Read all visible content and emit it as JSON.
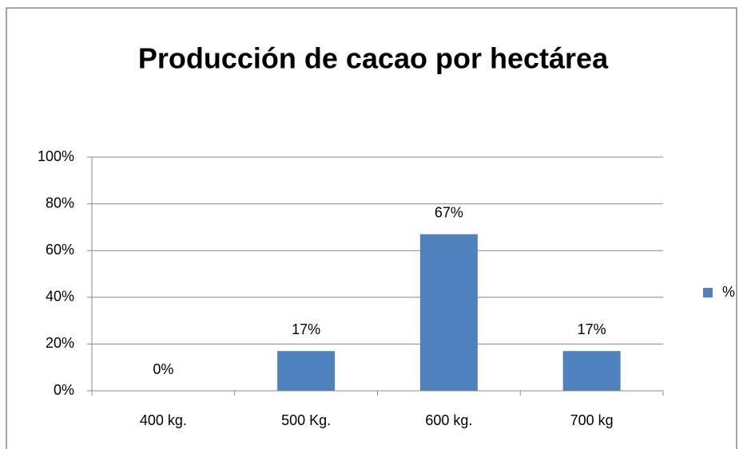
{
  "chart_data": {
    "type": "bar",
    "title": "Producción de cacao por hectárea",
    "categories": [
      "400 kg.",
      "500 Kg.",
      "600 kg.",
      "700 kg"
    ],
    "series": [
      {
        "name": "%",
        "color": "#4f81bd",
        "values": [
          0,
          17,
          67,
          17
        ],
        "value_labels": [
          "0%",
          "17%",
          "67%",
          "17%"
        ]
      }
    ],
    "ylim": [
      0,
      100
    ],
    "yticks": [
      {
        "value": 0,
        "label": "0%"
      },
      {
        "value": 20,
        "label": "20%"
      },
      {
        "value": 40,
        "label": "40%"
      },
      {
        "value": 60,
        "label": "60%"
      },
      {
        "value": 80,
        "label": "80%"
      },
      {
        "value": 100,
        "label": "100%"
      }
    ],
    "grid": true,
    "legend": "right"
  }
}
